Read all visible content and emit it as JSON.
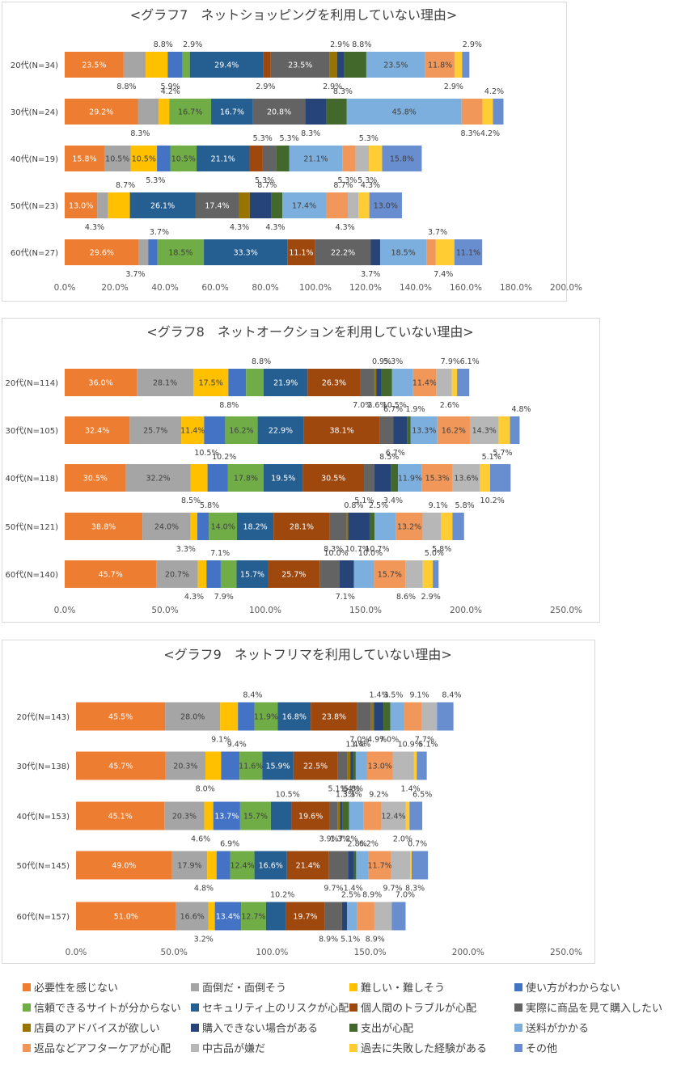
{
  "series": [
    {
      "name": "必要性を感じない",
      "color": "#ED7D31",
      "text": "#ffffff"
    },
    {
      "name": "面倒だ・面倒そう",
      "color": "#A5A5A5",
      "text": "#404040"
    },
    {
      "name": "難しい・難しそう",
      "color": "#FFC000",
      "text": "#404040"
    },
    {
      "name": "使い方がわからない",
      "color": "#4472C4",
      "text": "#ffffff"
    },
    {
      "name": "信頼できるサイトが分からない",
      "color": "#70AD47",
      "text": "#404040"
    },
    {
      "name": "セキュリティ上のリスクが心配",
      "color": "#255E91",
      "text": "#ffffff"
    },
    {
      "name": "個人間のトラブルが心配",
      "color": "#9E480E",
      "text": "#ffffff"
    },
    {
      "name": "実際に商品を見て購入したい",
      "color": "#636363",
      "text": "#ffffff"
    },
    {
      "name": "店員のアドバイスが欲しい",
      "color": "#997300",
      "text": "#ffffff"
    },
    {
      "name": "購入できない場合がある",
      "color": "#264478",
      "text": "#ffffff"
    },
    {
      "name": "支出が心配",
      "color": "#43682B",
      "text": "#ffffff"
    },
    {
      "name": "送料がかかる",
      "color": "#7CAFDD",
      "text": "#404040"
    },
    {
      "name": "返品などアフターケアが心配",
      "color": "#F1975A",
      "text": "#404040"
    },
    {
      "name": "中古品が嫌だ",
      "color": "#B7B7B7",
      "text": "#404040"
    },
    {
      "name": "過去に失敗した経験がある",
      "color": "#FFCD33",
      "text": "#404040"
    },
    {
      "name": "その他",
      "color": "#698ED0",
      "text": "#404040"
    }
  ],
  "chart_data": [
    {
      "type": "bar",
      "orientation": "horizontal-stacked",
      "title": "<グラフ7　ネットショッピングを利用していない理由>",
      "categories": [
        "20代(N=34)",
        "30代(N=24)",
        "40代(N=19)",
        "50代(N=23)",
        "60代(N=27)"
      ],
      "xlim": [
        0,
        200
      ],
      "xticks": [
        "0.0%",
        "20.0%",
        "40.0%",
        "60.0%",
        "80.0%",
        "100.0%",
        "120.0%",
        "140.0%",
        "160.0%",
        "180.0%",
        "200.0%"
      ],
      "values": [
        [
          23.5,
          8.8,
          8.8,
          5.9,
          2.9,
          29.4,
          2.9,
          23.5,
          2.9,
          2.9,
          8.8,
          23.5,
          11.8,
          0,
          2.9,
          2.9
        ],
        [
          29.2,
          8.3,
          4.2,
          0,
          16.7,
          16.7,
          0,
          20.8,
          0,
          8.3,
          8.3,
          45.8,
          8.3,
          0,
          4.2,
          4.2
        ],
        [
          15.8,
          10.5,
          10.5,
          5.3,
          10.5,
          21.1,
          5.3,
          5.3,
          0,
          0,
          5.3,
          21.1,
          5.3,
          5.3,
          5.3,
          15.8
        ],
        [
          13.0,
          4.3,
          8.7,
          0,
          0,
          26.1,
          0,
          17.4,
          4.3,
          8.7,
          4.3,
          17.4,
          8.7,
          4.3,
          4.3,
          13.0
        ],
        [
          29.6,
          3.7,
          0,
          3.7,
          18.5,
          33.3,
          11.1,
          22.2,
          0,
          3.7,
          0,
          18.5,
          3.7,
          0,
          7.4,
          11.1
        ]
      ]
    },
    {
      "type": "bar",
      "orientation": "horizontal-stacked",
      "title": "<グラフ8　ネットオークションを利用していない理由>",
      "categories": [
        "20代(N=114)",
        "30代(N=105)",
        "40代(N=118)",
        "50代(N=121)",
        "60代(N=140)"
      ],
      "xlim": [
        0,
        250
      ],
      "xticks": [
        "0.0%",
        "50.0%",
        "100.0%",
        "150.0%",
        "200.0%",
        "250.0%"
      ],
      "values": [
        [
          36.0,
          28.1,
          17.5,
          8.8,
          8.8,
          21.9,
          26.3,
          7.0,
          0.9,
          2.6,
          5.3,
          10.5,
          11.4,
          7.9,
          2.6,
          6.1
        ],
        [
          32.4,
          25.7,
          11.4,
          10.5,
          16.2,
          22.9,
          38.1,
          6.7,
          0,
          6.7,
          1.9,
          13.3,
          16.2,
          14.3,
          5.7,
          4.8
        ],
        [
          30.5,
          32.2,
          8.5,
          10.2,
          17.8,
          19.5,
          30.5,
          5.1,
          0,
          8.5,
          3.4,
          11.9,
          15.3,
          13.6,
          5.1,
          10.2
        ],
        [
          38.8,
          24.0,
          3.3,
          5.8,
          14.0,
          18.2,
          28.1,
          8.3,
          0.8,
          10.7,
          2.5,
          10.7,
          13.2,
          9.1,
          5.8,
          5.8
        ],
        [
          45.7,
          20.7,
          4.3,
          7.1,
          7.9,
          15.7,
          25.7,
          10.0,
          0,
          7.1,
          0,
          10.0,
          15.7,
          8.6,
          5.0,
          2.9
        ]
      ]
    },
    {
      "type": "bar",
      "orientation": "horizontal-stacked",
      "title": "<グラフ9　ネットフリマを利用していない理由>",
      "categories": [
        "20代(N=143)",
        "30代(N=138)",
        "40代(N=153)",
        "50代(N=145)",
        "60代(N=157)"
      ],
      "xlim": [
        0,
        250
      ],
      "xticks": [
        "0.0%",
        "50.0%",
        "100.0%",
        "150.0%",
        "200.0%",
        "250.0%"
      ],
      "values": [
        [
          45.5,
          28.0,
          9.1,
          8.4,
          11.9,
          16.8,
          23.8,
          7.0,
          1.4,
          4.9,
          3.5,
          7.0,
          9.1,
          7.7,
          0,
          8.4
        ],
        [
          45.7,
          20.3,
          8.0,
          9.4,
          11.6,
          15.9,
          22.5,
          5.1,
          1.4,
          1.4,
          1.4,
          5.8,
          13.0,
          10.9,
          1.4,
          5.1
        ],
        [
          45.1,
          20.3,
          4.6,
          13.7,
          15.7,
          10.5,
          19.6,
          3.9,
          1.3,
          1.3,
          3.3,
          7.2,
          9.2,
          12.4,
          2.0,
          6.5
        ],
        [
          49.0,
          17.9,
          4.8,
          6.9,
          12.4,
          16.6,
          21.4,
          9.7,
          0,
          2.8,
          1.4,
          6.2,
          11.7,
          9.7,
          0.7,
          8.3
        ],
        [
          51.0,
          16.6,
          3.2,
          13.4,
          12.7,
          10.2,
          19.7,
          8.9,
          0,
          2.5,
          0,
          5.1,
          8.9,
          8.9,
          0,
          7.0
        ]
      ]
    }
  ]
}
